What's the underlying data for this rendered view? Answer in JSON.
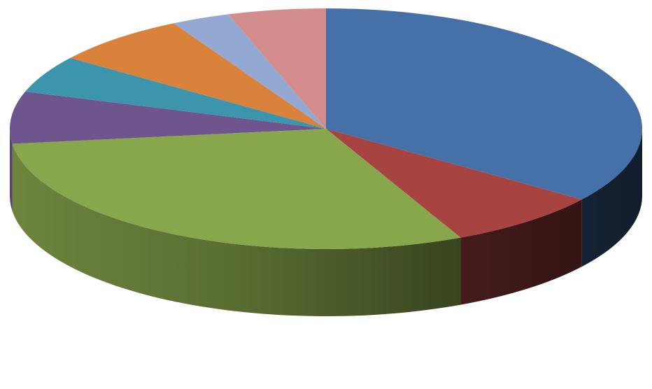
{
  "chart_data": {
    "type": "pie",
    "title": "",
    "legend": "none",
    "style": "3d-pie",
    "start_angle_deg": 0,
    "direction": "clockwise",
    "slices": [
      {
        "value": 35.0,
        "color": "#4570A8"
      },
      {
        "value": 8.0,
        "color": "#A74341"
      },
      {
        "value": 30.0,
        "color": "#88A64C"
      },
      {
        "value": 7.0,
        "color": "#6E558D"
      },
      {
        "value": 5.0,
        "color": "#3C94AD"
      },
      {
        "value": 7.0,
        "color": "#D9823C"
      },
      {
        "value": 3.0,
        "color": "#94A9D1"
      },
      {
        "value": 5.0,
        "color": "#D28D8C"
      }
    ]
  }
}
